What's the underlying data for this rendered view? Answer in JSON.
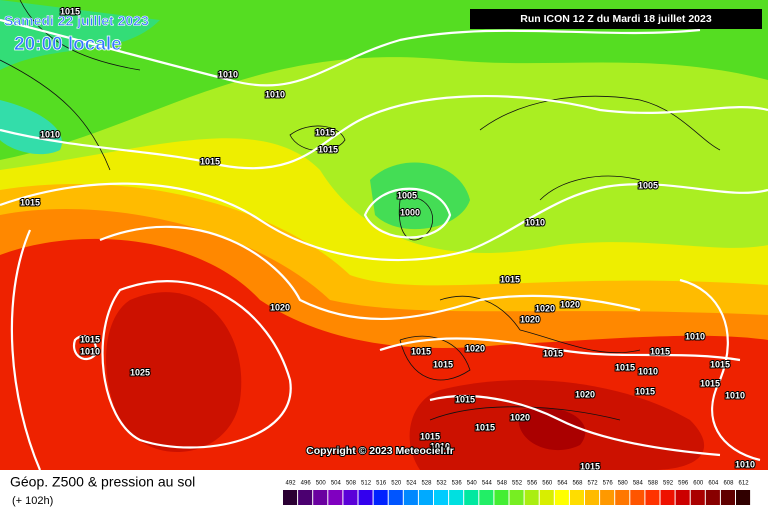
{
  "header": {
    "date": "Samedi 22 juillet 2023",
    "time": "20:00 locale",
    "run": "Run ICON 12 Z du Mardi 18 juillet 2023"
  },
  "isobar_labels": [
    1015,
    1010,
    1010,
    1010,
    1015,
    1015,
    1015,
    1015,
    1005,
    1000,
    1010,
    1005,
    1015,
    1020,
    1020,
    1020,
    1020,
    1015,
    1010,
    1015,
    1020,
    1015,
    1015,
    1015,
    1010,
    1025,
    1015,
    1010,
    1015,
    1015,
    1020,
    1015,
    1015,
    1010,
    1015,
    1020,
    1015,
    1010,
    1015,
    1010
  ],
  "copyright": "Copyright © 2023 Meteociel.fr",
  "footer": {
    "title": "Géop. Z500 & pression au sol",
    "subtitle": "(+ 102h)"
  },
  "scale": {
    "values": [
      492,
      496,
      500,
      504,
      508,
      512,
      516,
      520,
      524,
      528,
      532,
      536,
      540,
      544,
      548,
      552,
      556,
      560,
      564,
      568,
      572,
      576,
      580,
      584,
      588,
      592,
      596,
      600,
      604,
      608,
      612
    ],
    "colors": [
      "#2b0033",
      "#4b0070",
      "#6a00a0",
      "#8000c0",
      "#5a00d8",
      "#3300ee",
      "#0022ff",
      "#0055ff",
      "#0088ff",
      "#00aaff",
      "#00ccff",
      "#00e0e0",
      "#00e8a0",
      "#22ee66",
      "#44ee33",
      "#77ee22",
      "#aaee11",
      "#d8ee00",
      "#ffff00",
      "#ffdd00",
      "#ffbb00",
      "#ff9900",
      "#ff7700",
      "#ff5500",
      "#ff3300",
      "#ee1100",
      "#cc0000",
      "#aa0000",
      "#880000",
      "#600000",
      "#300000"
    ]
  }
}
